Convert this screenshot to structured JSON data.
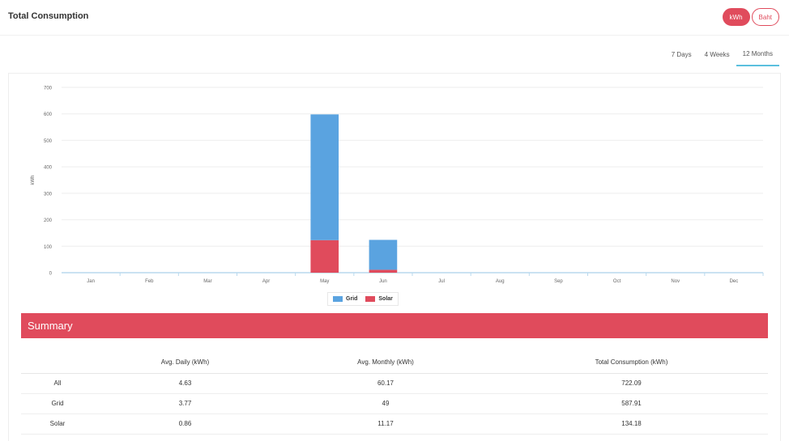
{
  "header": {
    "title": "Total Consumption",
    "units": [
      {
        "label": "kWh",
        "active": true
      },
      {
        "label": "Baht",
        "active": false
      }
    ]
  },
  "tabs": [
    {
      "label": "7 Days",
      "active": false
    },
    {
      "label": "4 Weeks",
      "active": false
    },
    {
      "label": "12 Months",
      "active": true
    }
  ],
  "colors": {
    "grid": "#5aa3e0",
    "solar": "#e04b5c",
    "accent": "#e04b5c",
    "tab_underline": "#5bc0de"
  },
  "chart_data": {
    "type": "bar",
    "stacked": true,
    "categories": [
      "Jan",
      "Feb",
      "Mar",
      "Apr",
      "May",
      "Jun",
      "Jul",
      "Aug",
      "Sep",
      "Oct",
      "Nov",
      "Dec"
    ],
    "series": [
      {
        "name": "Solar",
        "values": [
          0,
          0,
          0,
          0,
          123,
          11,
          0,
          0,
          0,
          0,
          0,
          0
        ]
      },
      {
        "name": "Grid",
        "values": [
          0,
          0,
          0,
          0,
          475,
          113,
          0,
          0,
          0,
          0,
          0,
          0
        ]
      }
    ],
    "ylabel": "kWh",
    "ylim": [
      0,
      700
    ],
    "yticks": [
      0,
      100,
      200,
      300,
      400,
      500,
      600,
      700
    ],
    "grid": true,
    "legend_position": "bottom-center"
  },
  "legend": {
    "grid": "Grid",
    "solar": "Solar"
  },
  "summary": {
    "title": "Summary",
    "columns": [
      "",
      "Avg. Daily (kWh)",
      "Avg. Monthly (kWh)",
      "Total Consumption (kWh)"
    ],
    "rows": [
      {
        "label": "All",
        "daily": "4.63",
        "monthly": "60.17",
        "total": "722.09"
      },
      {
        "label": "Grid",
        "daily": "3.77",
        "monthly": "49",
        "total": "587.91"
      },
      {
        "label": "Solar",
        "daily": "0.86",
        "monthly": "11.17",
        "total": "134.18"
      }
    ]
  }
}
